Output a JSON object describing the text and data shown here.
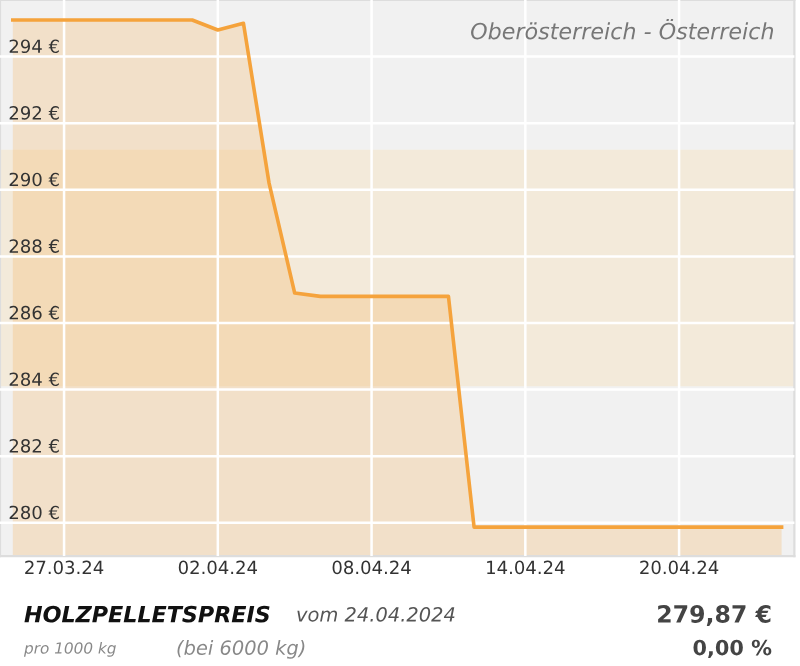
{
  "chart_data": {
    "type": "area",
    "title": "Oberösterreich - Österreich",
    "x": [
      "2024-03-25",
      "2024-04-01",
      "2024-04-02",
      "2024-04-03",
      "2024-04-04",
      "2024-04-05",
      "2024-04-06",
      "2024-04-11",
      "2024-04-12",
      "2024-04-24"
    ],
    "series": [
      {
        "color": "#f5a33c",
        "values": [
          295.1,
          295.1,
          294.8,
          295.0,
          290.2,
          286.9,
          286.8,
          286.8,
          279.87,
          279.87
        ]
      }
    ],
    "bands": [
      {
        "axis": "y",
        "from": 284.1,
        "to": 291.2,
        "color": "#f5e6cc"
      }
    ],
    "xlim": [
      "2024-03-24T12:00",
      "2024-04-24T12:00"
    ],
    "xticks": [
      {
        "value": "2024-03-27",
        "label": "27.03.24"
      },
      {
        "value": "2024-04-02",
        "label": "02.04.24"
      },
      {
        "value": "2024-04-08",
        "label": "08.04.24"
      },
      {
        "value": "2024-04-14",
        "label": "14.04.24"
      },
      {
        "value": "2024-04-20",
        "label": "20.04.24"
      }
    ],
    "ylim": [
      279,
      295.7
    ],
    "yticks": [
      {
        "value": 280,
        "label": "280 €"
      },
      {
        "value": 282,
        "label": "282 €"
      },
      {
        "value": 284,
        "label": "284 €"
      },
      {
        "value": 286,
        "label": "286 €"
      },
      {
        "value": 288,
        "label": "288 €"
      },
      {
        "value": 290,
        "label": "290 €"
      },
      {
        "value": 292,
        "label": "292 €"
      },
      {
        "value": 294,
        "label": "294 €"
      }
    ],
    "grid": true,
    "annotations": [
      "HOLZPELLETSPREIS",
      "vom 24.04.2024",
      "pro 1000 kg",
      "(bei 6000 kg)",
      "279,87 €",
      "0,00 %"
    ]
  }
}
